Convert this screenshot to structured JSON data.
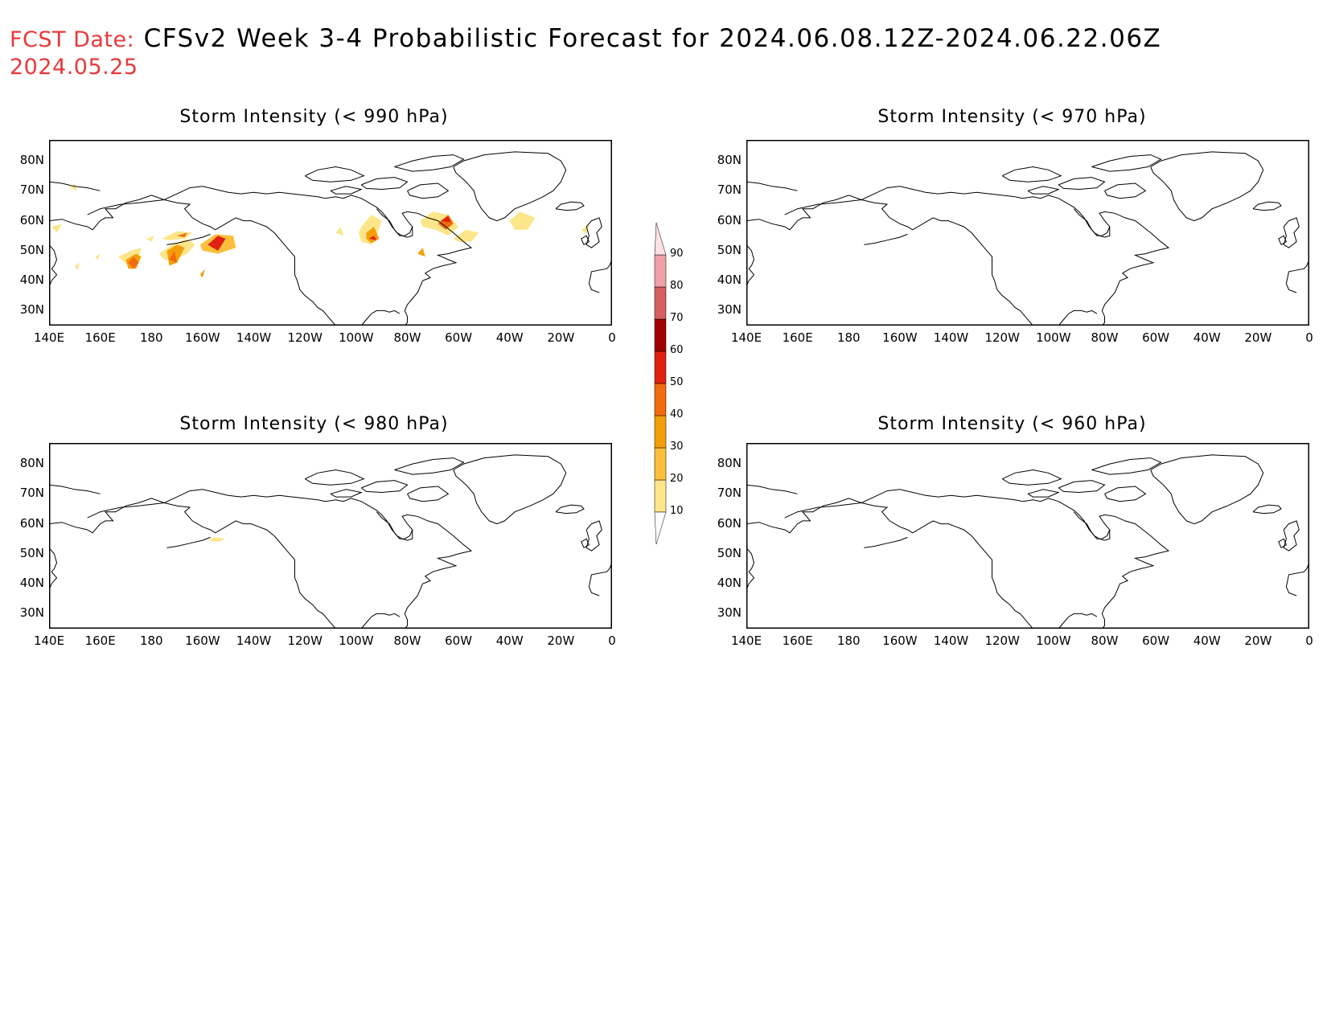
{
  "header": {
    "fcst_label": "FCST Date:",
    "title": "CFSv2 Week 3-4 Probabilistic Forecast for 2024.06.08.12Z-2024.06.22.06Z",
    "fcst_date": "2024.05.25"
  },
  "panels": [
    {
      "id": "p990",
      "title": "Storm Intensity (< 990 hPa)"
    },
    {
      "id": "p970",
      "title": "Storm Intensity (< 970 hPa)"
    },
    {
      "id": "p980",
      "title": "Storm Intensity (< 980 hPa)"
    },
    {
      "id": "p960",
      "title": "Storm Intensity (< 960 hPa)"
    }
  ],
  "axes": {
    "lat_labels": [
      "80N",
      "70N",
      "60N",
      "50N",
      "40N",
      "30N"
    ],
    "lon_labels": [
      "140E",
      "160E",
      "180",
      "160W",
      "140W",
      "120W",
      "100W",
      "80W",
      "60W",
      "40W",
      "20W",
      "0"
    ]
  },
  "colorbar": {
    "levels": [
      "10",
      "20",
      "30",
      "40",
      "50",
      "60",
      "70",
      "80",
      "90"
    ],
    "colors": [
      "#fff5b0",
      "#fde68a",
      "#fbbf3c",
      "#f59e0b",
      "#f26a10",
      "#e02010",
      "#a00000",
      "#d46060",
      "#f0a0a8",
      "#fde0e4"
    ]
  },
  "colors": {
    "header_accent": "#e8393b"
  }
}
